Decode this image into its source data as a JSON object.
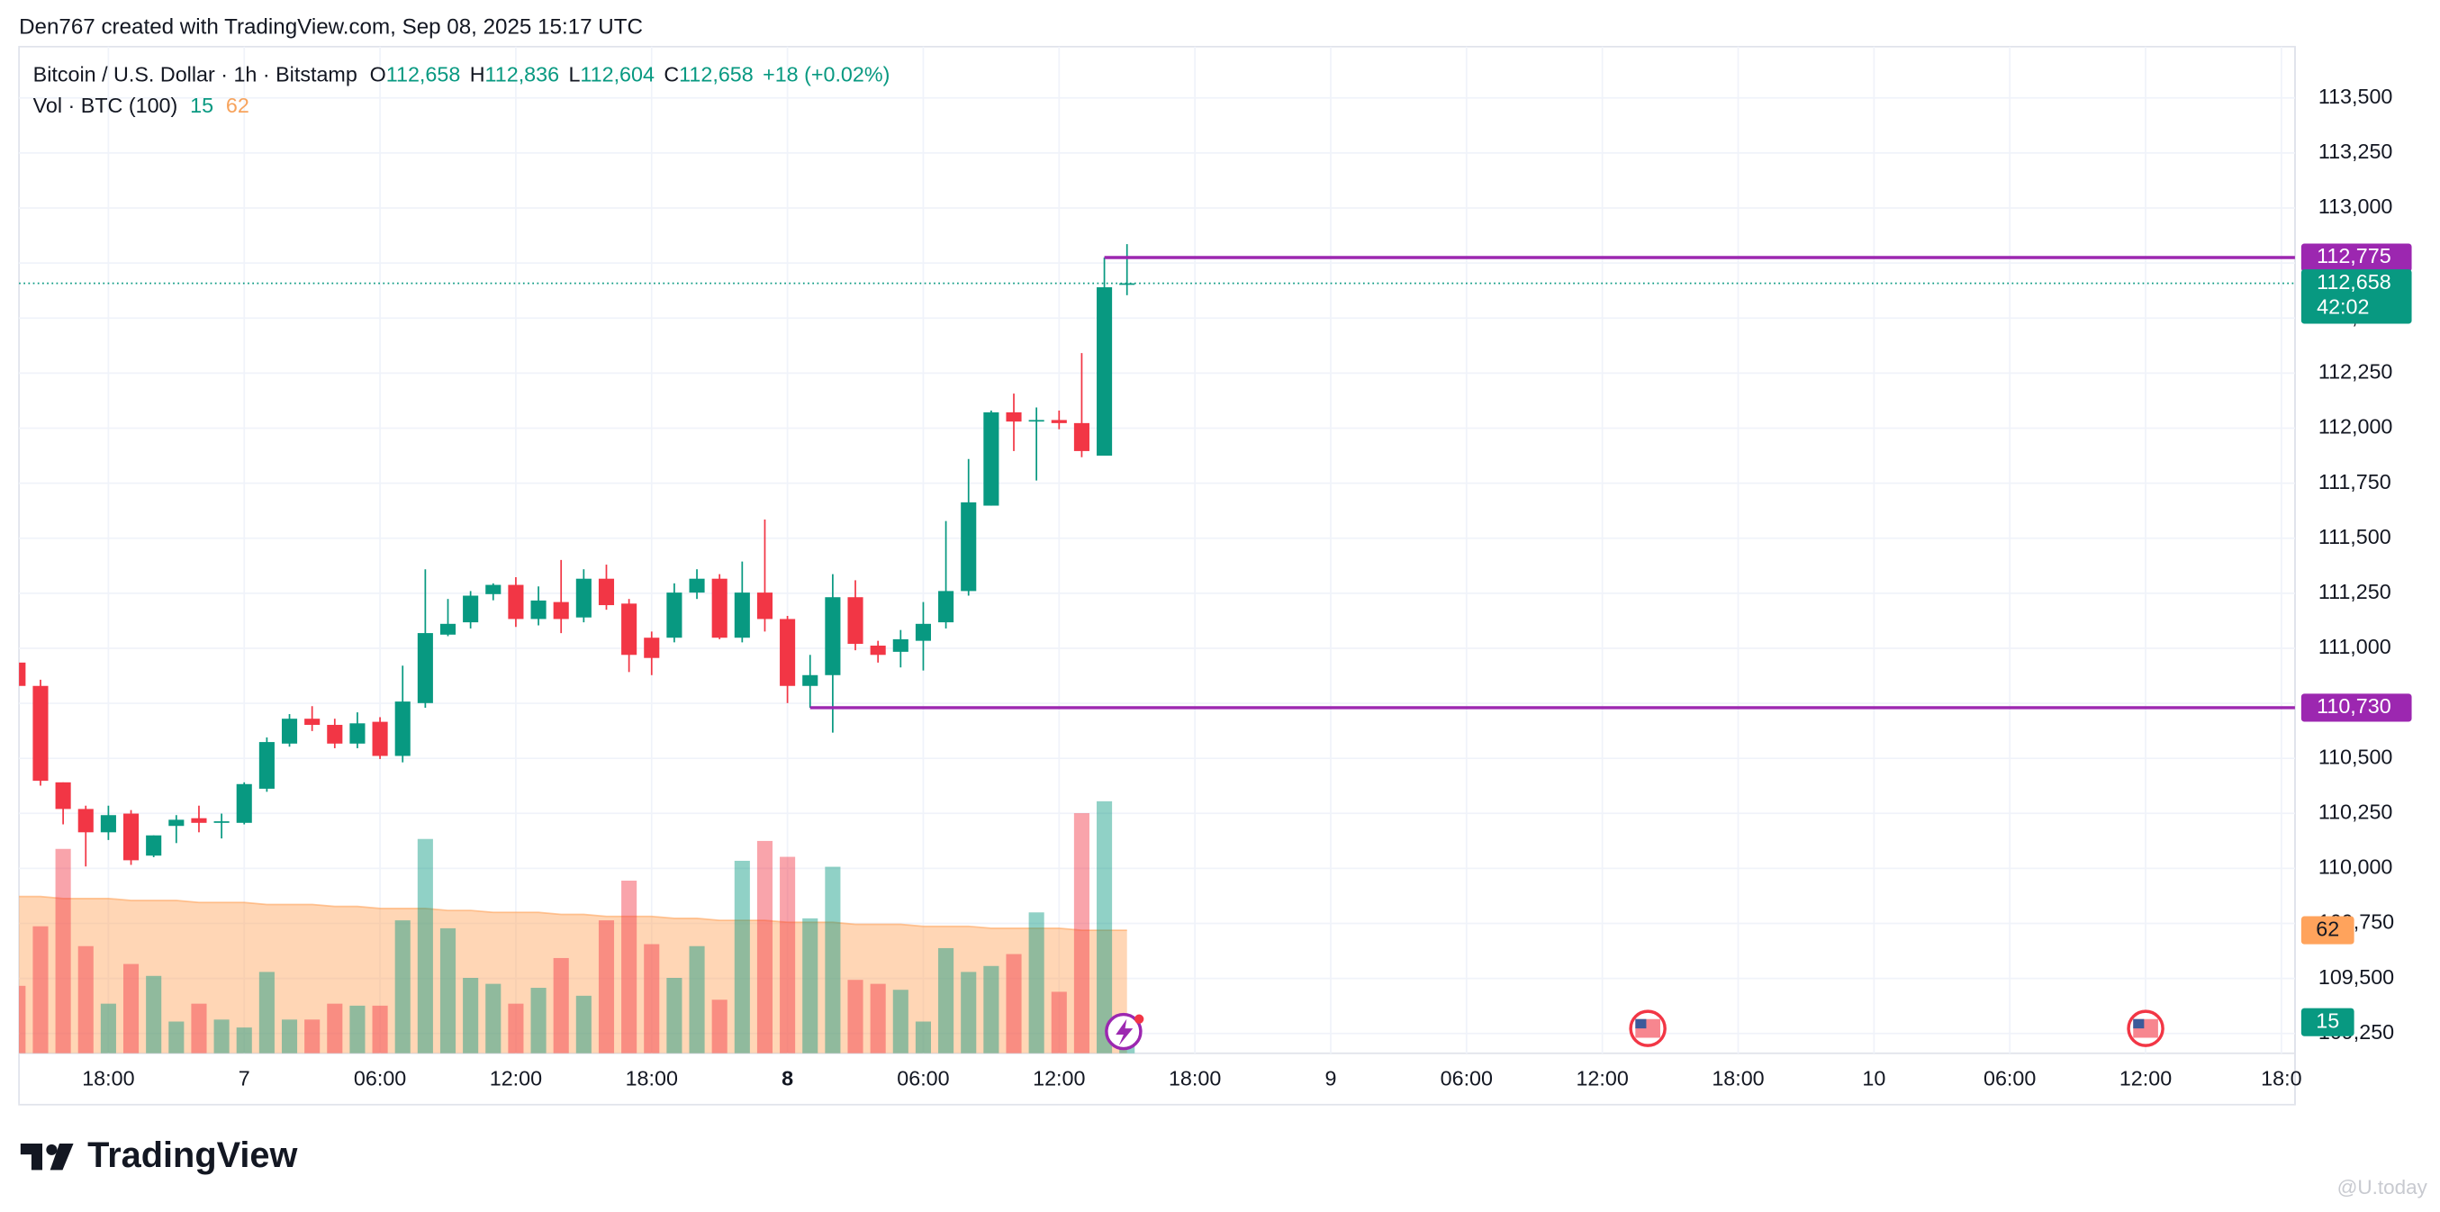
{
  "header": "Den767 created with TradingView.com, Sep 08, 2025 15:17 UTC",
  "brand": "TradingView",
  "watermark": "@U.today",
  "chart_data": {
    "type": "candlestick",
    "legend": {
      "symbol": "Bitcoin / U.S. Dollar · 1h · Bitstamp",
      "fields": [
        {
          "key": "O",
          "value": 112658,
          "label": "112,658"
        },
        {
          "key": "H",
          "value": 112836,
          "label": "112,836"
        },
        {
          "key": "L",
          "value": 112604,
          "label": "112,604"
        },
        {
          "key": "C",
          "value": 112658,
          "label": "112,658"
        }
      ],
      "change": "+18 (+0.02%)",
      "volume_title": "Vol · BTC (100)"
    },
    "x": [
      -10,
      -9,
      -8,
      -7,
      -6,
      -5,
      -4,
      -3,
      -2,
      -1,
      0,
      1,
      2,
      3,
      4,
      5,
      6,
      7,
      8,
      9,
      10,
      11,
      12,
      13,
      14,
      15,
      16,
      17,
      18,
      19,
      20,
      21,
      22,
      23,
      24,
      25,
      26,
      27,
      28,
      29,
      30,
      31,
      32,
      33,
      34,
      35,
      36,
      37,
      38,
      39
    ],
    "open": [
      110935,
      110829,
      110391,
      110270,
      110164,
      110249,
      110058,
      110193,
      110228,
      110207,
      110207,
      110362,
      110567,
      110680,
      110652,
      110567,
      110666,
      110511,
      110751,
      111062,
      111118,
      111246,
      111288,
      111133,
      111210,
      111140,
      111316,
      111203,
      111048,
      111048,
      111253,
      111316,
      111048,
      111253,
      111133,
      110829,
      110878,
      111232,
      111012,
      110984,
      111034,
      111118,
      111260,
      111648,
      112072,
      112030,
      112037,
      112023,
      111875,
      112658
    ],
    "high": [
      110950,
      110857,
      110391,
      110285,
      110285,
      110265,
      110150,
      110242,
      110285,
      110249,
      110391,
      110595,
      110701,
      110737,
      110680,
      110709,
      110687,
      110921,
      111359,
      111224,
      111260,
      111295,
      111323,
      111281,
      111401,
      111359,
      111380,
      111224,
      111076,
      111295,
      111359,
      111337,
      111394,
      111585,
      111147,
      110970,
      111337,
      111309,
      111034,
      111083,
      111210,
      111578,
      111860,
      112080,
      112157,
      112094,
      112080,
      112341,
      112775,
      112836
    ],
    "low": [
      110829,
      110376,
      110200,
      110009,
      110129,
      110016,
      110051,
      110115,
      110164,
      110136,
      110200,
      110348,
      110553,
      110624,
      110546,
      110546,
      110497,
      110482,
      110730,
      111055,
      111090,
      111218,
      111097,
      111104,
      111069,
      111118,
      111175,
      110892,
      110878,
      111027,
      111224,
      111041,
      111027,
      111076,
      110751,
      110730,
      110617,
      110991,
      110935,
      110913,
      110899,
      111090,
      111239,
      111648,
      111896,
      111762,
      111995,
      111868,
      111875,
      112604
    ],
    "close": [
      110829,
      110398,
      110270,
      110164,
      110242,
      110037,
      110150,
      110221,
      110207,
      110214,
      110383,
      110574,
      110680,
      110652,
      110567,
      110659,
      110511,
      110758,
      111069,
      111111,
      111239,
      111288,
      111133,
      111217,
      111133,
      111316,
      111196,
      110970,
      110956,
      111253,
      111316,
      111048,
      111253,
      111133,
      110829,
      110878,
      111232,
      111020,
      110970,
      111041,
      111111,
      111260,
      111663,
      112072,
      112030,
      112037,
      112023,
      111896,
      112640,
      112658
    ],
    "volumes": [
      34,
      64,
      103,
      54,
      25,
      45,
      39,
      16,
      25,
      17,
      13,
      41,
      17,
      17,
      25,
      24,
      24,
      67,
      108,
      63,
      38,
      35,
      25,
      33,
      48,
      29,
      67,
      87,
      55,
      38,
      54,
      27,
      97,
      107,
      99,
      68,
      94,
      37,
      35,
      32,
      16,
      53,
      41,
      44,
      50,
      71,
      31,
      121,
      127,
      15
    ],
    "ma": [
      79,
      79,
      78,
      78,
      78,
      77,
      77,
      77,
      76,
      76,
      76,
      75,
      75,
      75,
      74,
      74,
      73,
      73,
      73,
      72,
      72,
      71,
      71,
      71,
      70,
      70,
      69,
      69,
      69,
      68,
      68,
      67,
      67,
      67,
      66,
      66,
      66,
      65,
      65,
      65,
      64,
      64,
      64,
      63,
      63,
      63,
      63,
      62,
      62,
      62
    ],
    "up_color": "#089981",
    "down_color": "#f23645",
    "ma_color": "#ffa35c",
    "level_color": "#9c27b0",
    "levels": [
      {
        "value": 112775,
        "label": "112,775",
        "from": 38
      },
      {
        "value": 110730,
        "label": "110,730",
        "from": 25
      }
    ],
    "last_price": {
      "value": 112658,
      "label": "112,658",
      "countdown": "42:02"
    },
    "ylim": [
      109160,
      113733
    ],
    "yticks": [
      {
        "value": 109250,
        "label": "109,250"
      },
      {
        "value": 109500,
        "label": "109,500"
      },
      {
        "value": 109750,
        "label": "109,750"
      },
      {
        "value": 110000,
        "label": "110,000"
      },
      {
        "value": 110250,
        "label": "110,250"
      },
      {
        "value": 110500,
        "label": "110,500"
      },
      {
        "value": 110750,
        "label": "110,750"
      },
      {
        "value": 111000,
        "label": "111,000"
      },
      {
        "value": 111250,
        "label": "111,250"
      },
      {
        "value": 111500,
        "label": "111,500"
      },
      {
        "value": 111750,
        "label": "111,750"
      },
      {
        "value": 112000,
        "label": "112,000"
      },
      {
        "value": 112250,
        "label": "112,250"
      },
      {
        "value": 112500,
        "label": "112,500"
      },
      {
        "value": 112750,
        "label": "112,750"
      },
      {
        "value": 113000,
        "label": "113,000"
      },
      {
        "value": 113250,
        "label": "113,250"
      },
      {
        "value": 113500,
        "label": "113,500"
      }
    ],
    "xlim": [
      -9.95,
      90.6
    ],
    "xticks": [
      {
        "value": -6,
        "label": "18:00"
      },
      {
        "value": 0,
        "label": "7"
      },
      {
        "value": 6,
        "label": "06:00"
      },
      {
        "value": 12,
        "label": "12:00"
      },
      {
        "value": 18,
        "label": "18:00"
      },
      {
        "value": 24,
        "label": "8"
      },
      {
        "value": 30,
        "label": "06:00"
      },
      {
        "value": 36,
        "label": "12:00"
      },
      {
        "value": 42,
        "label": "18:00"
      },
      {
        "value": 48,
        "label": "9"
      },
      {
        "value": 54,
        "label": "06:00"
      },
      {
        "value": 60,
        "label": "12:00"
      },
      {
        "value": 66,
        "label": "18:00"
      },
      {
        "value": 72,
        "label": "10"
      },
      {
        "value": 78,
        "label": "06:00"
      },
      {
        "value": 84,
        "label": "12:00"
      },
      {
        "value": 90,
        "label": "18:0"
      }
    ],
    "xtick_bold": 24,
    "grid": true
  }
}
